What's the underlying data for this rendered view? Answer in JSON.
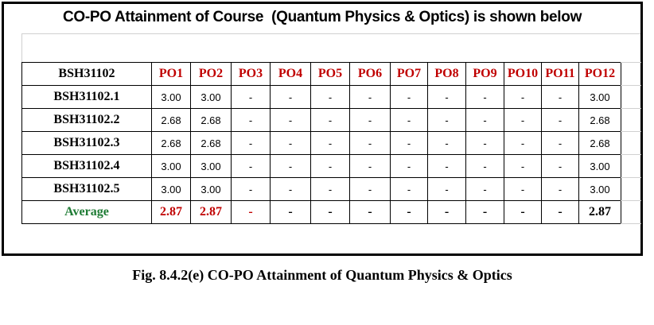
{
  "title": "CO-PO Attainment of Course  (Quantum Physics & Optics) is shown below",
  "table": {
    "header": [
      "BSH31102",
      "PO1",
      "PO2",
      "PO3",
      "PO4",
      "PO5",
      "PO6",
      "PO7",
      "PO8",
      "PO9",
      "PO10",
      "PO11",
      "PO12"
    ],
    "rows": [
      [
        "BSH31102.1",
        "3.00",
        "3.00",
        "-",
        "-",
        "-",
        "-",
        "-",
        "-",
        "-",
        "-",
        "-",
        "3.00"
      ],
      [
        "BSH31102.2",
        "2.68",
        "2.68",
        "-",
        "-",
        "-",
        "-",
        "-",
        "-",
        "-",
        "-",
        "-",
        "2.68"
      ],
      [
        "BSH31102.3",
        "2.68",
        "2.68",
        "-",
        "-",
        "-",
        "-",
        "-",
        "-",
        "-",
        "-",
        "-",
        "2.68"
      ],
      [
        "BSH31102.4",
        "3.00",
        "3.00",
        "-",
        "-",
        "-",
        "-",
        "-",
        "-",
        "-",
        "-",
        "-",
        "3.00"
      ],
      [
        "BSH31102.5",
        "3.00",
        "3.00",
        "-",
        "-",
        "-",
        "-",
        "-",
        "-",
        "-",
        "-",
        "-",
        "3.00"
      ],
      [
        "Average",
        "2.87",
        "2.87",
        "-",
        "-",
        "-",
        "-",
        "-",
        "-",
        "-",
        "-",
        "-",
        "2.87"
      ]
    ]
  },
  "caption": "Fig. 8.4.2(e) CO-PO Attainment of Quantum Physics & Optics"
}
